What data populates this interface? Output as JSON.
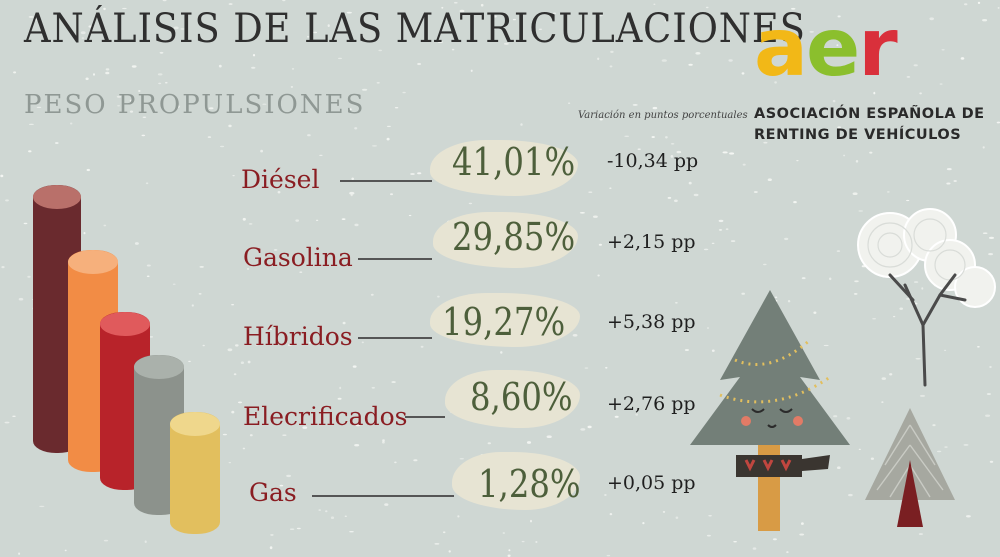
{
  "title": "ANÁLISIS DE LAS MATRICULACIONES",
  "subtitle": "PESO PROPULSIONES",
  "variation_header": "Variación en puntos porcentuales",
  "logo": {
    "letters": [
      "a",
      "e",
      "r"
    ],
    "line1": "ASOCIACIÓN ESPAÑOLA DE",
    "line2": "RENTING DE VEHÍCULOS",
    "colors": {
      "a": "#f2b817",
      "e": "#8bbf2d",
      "r": "#d9303b"
    }
  },
  "rows": [
    {
      "label": "Diésel",
      "percent": "41,01%",
      "variation": "-10,34 pp",
      "share": 41.01,
      "color": "#6a2a2e"
    },
    {
      "label": "Gasolina",
      "percent": "29,85%",
      "variation": "+2,15 pp",
      "share": 29.85,
      "color": "#f28c45"
    },
    {
      "label": "Híbridos",
      "percent": "19,27%",
      "variation": "+5,38 pp",
      "share": 19.27,
      "color": "#b8232a"
    },
    {
      "label": "Elecrificados",
      "percent": "8,60%",
      "variation": "+2,76 pp",
      "share": 8.6,
      "color": "#8c928c"
    },
    {
      "label": "Gas",
      "percent": "1,28%",
      "variation": "+0,05 pp",
      "share": 1.28,
      "color": "#e2bf5e"
    }
  ],
  "icons": [
    "snowy-tree-icon",
    "christmas-tree-icon",
    "pine-tree-icon"
  ]
}
